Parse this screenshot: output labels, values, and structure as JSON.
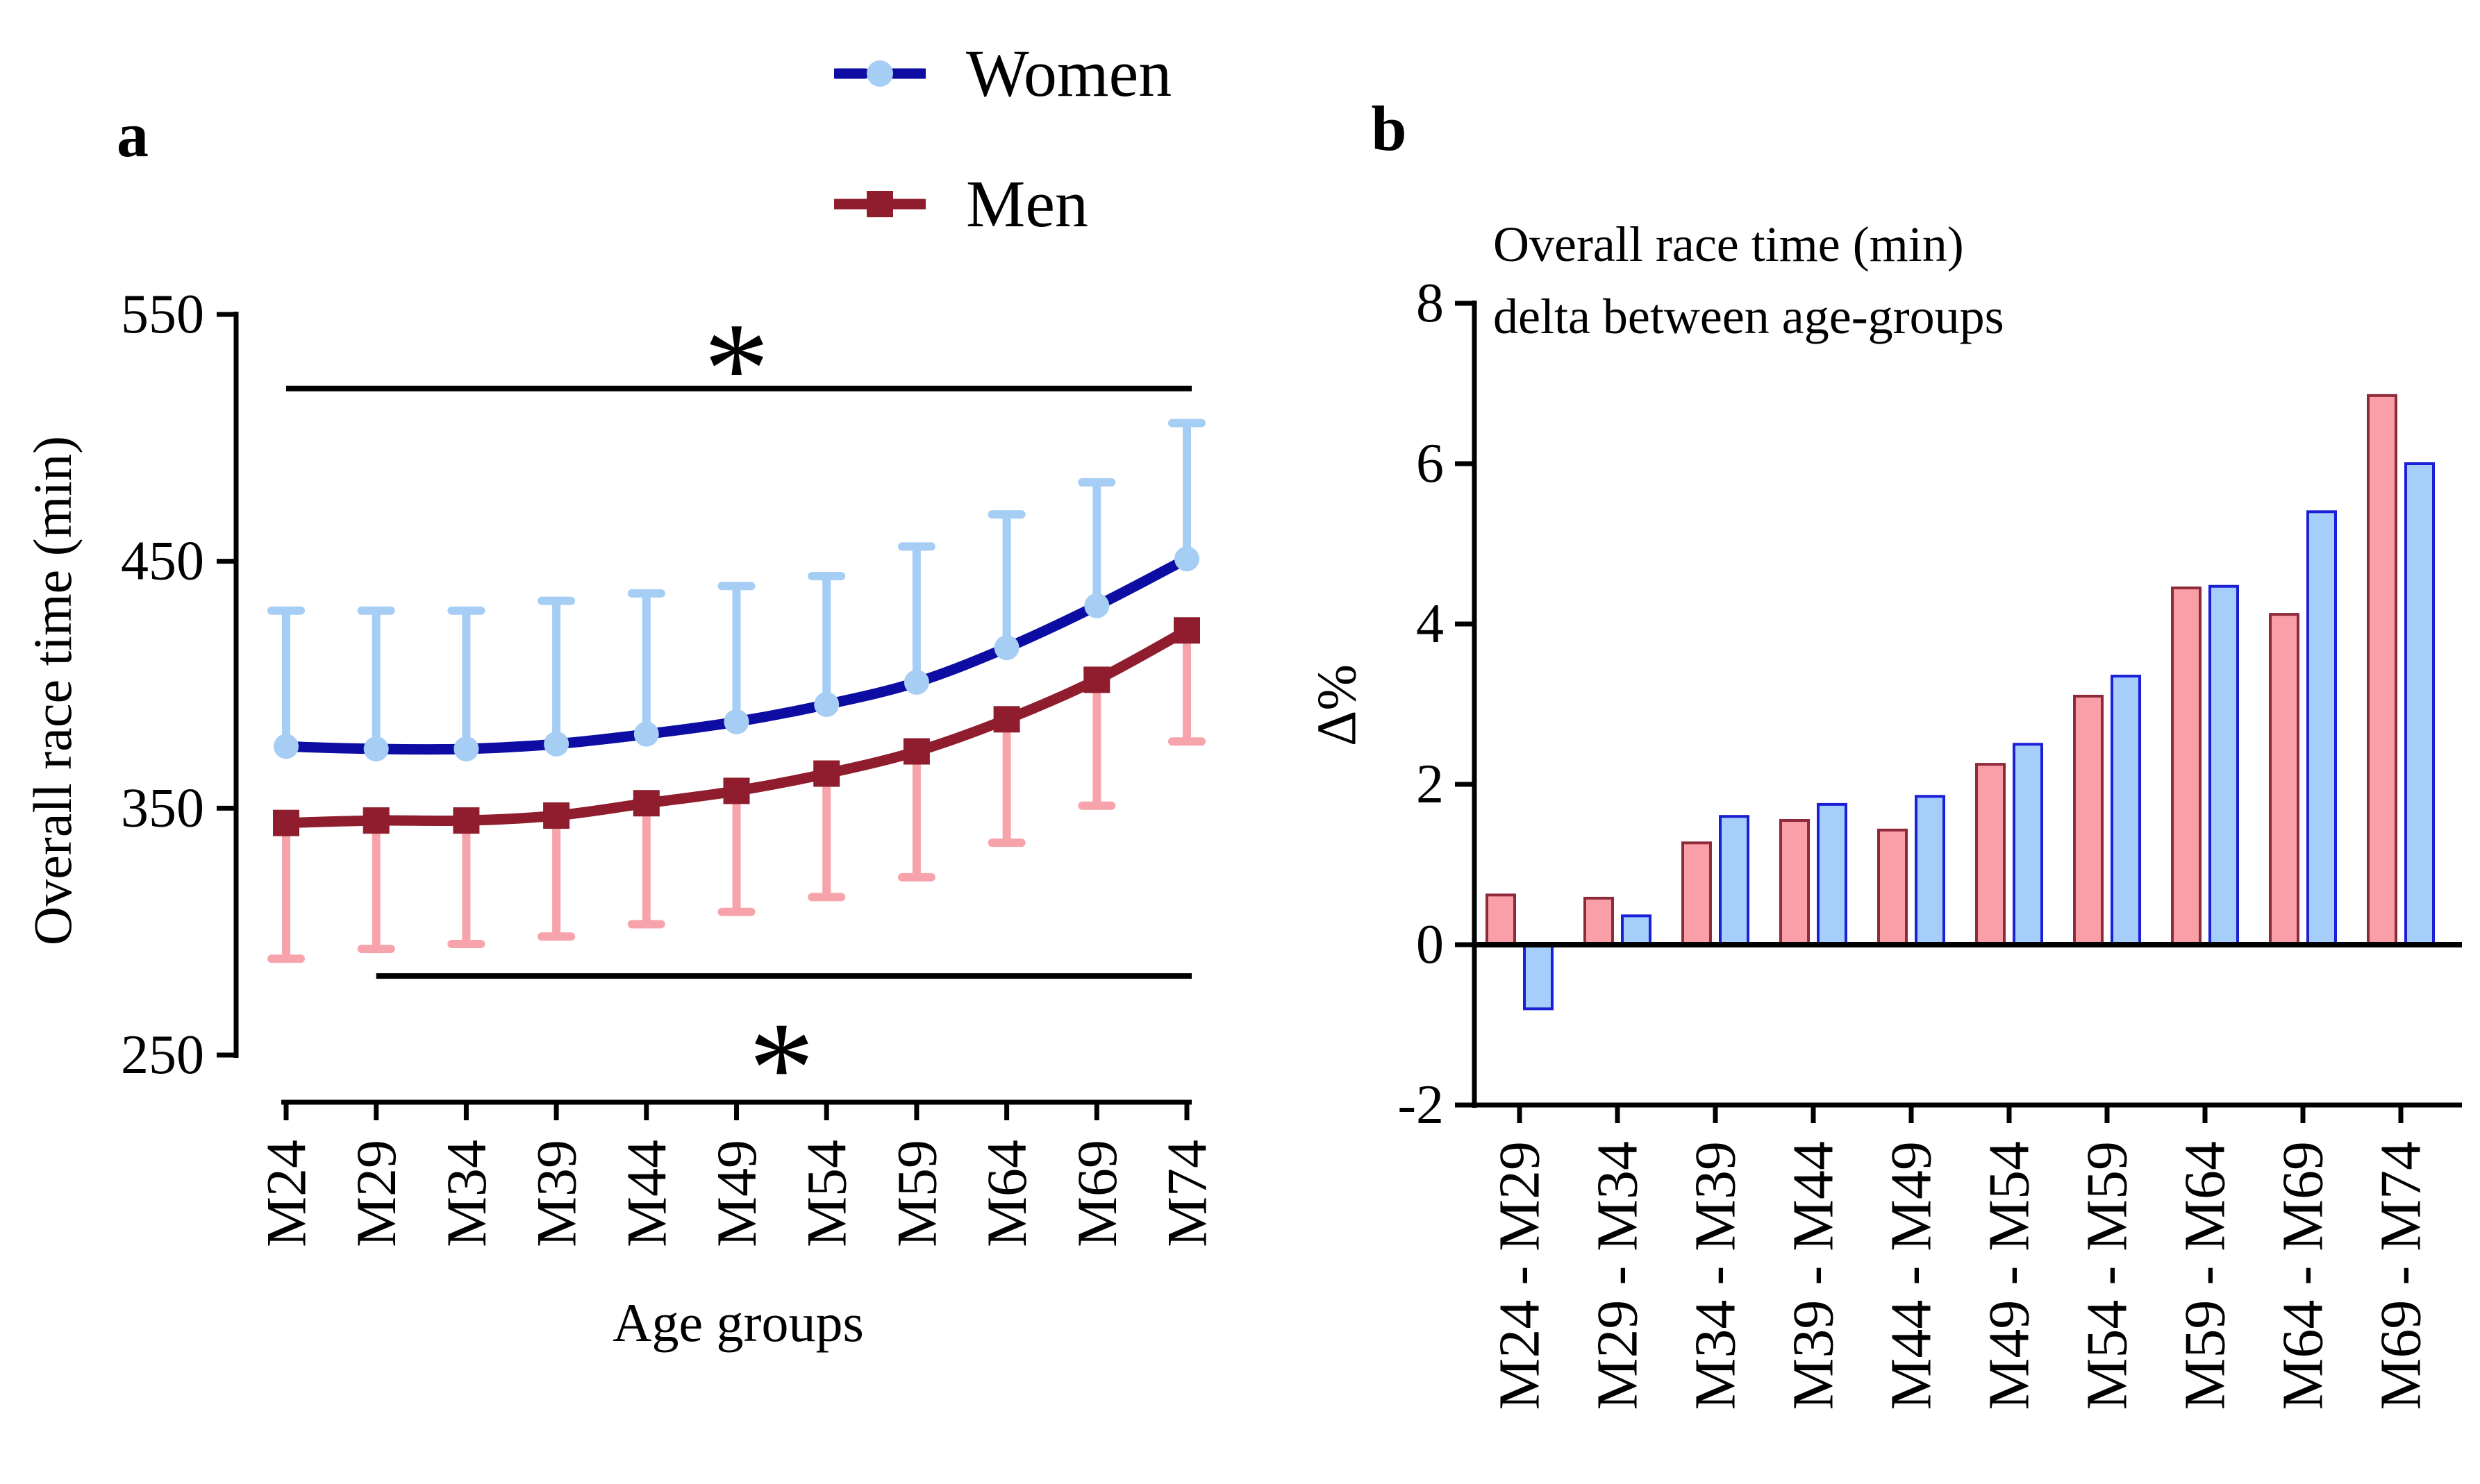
{
  "chart_data": [
    {
      "id": "panel_a",
      "type": "line",
      "panel_label": "a",
      "xlabel": "Age groups",
      "ylabel": "Overall race time (min)",
      "ylim": [
        250,
        550
      ],
      "yticks": [
        550,
        450,
        350,
        250
      ],
      "grid": "off",
      "legend_position": "top-center",
      "categories": [
        "M24",
        "M29",
        "M34",
        "M39",
        "M44",
        "M49",
        "M54",
        "M59",
        "M64",
        "M69",
        "M74"
      ],
      "series": [
        {
          "name": "Women",
          "marker": "circle",
          "line_color": "#0d0da3",
          "fill_color": "#a6cdf4",
          "values": [
            375,
            374,
            374,
            376,
            380,
            385,
            392,
            401,
            415,
            432,
            451
          ],
          "error_upper": [
            430,
            430,
            430,
            434,
            437,
            440,
            444,
            456,
            469,
            482,
            506
          ]
        },
        {
          "name": "Men",
          "marker": "square",
          "line_color": "#8f1d2e",
          "fill_color": "#f7a3ab",
          "values": [
            344,
            345,
            345,
            347,
            352,
            357,
            364,
            373,
            386,
            402,
            422
          ],
          "error_lower": [
            289,
            293,
            295,
            298,
            303,
            308,
            314,
            322,
            336,
            351,
            377
          ]
        }
      ],
      "annotations": [
        {
          "symbol": "*",
          "from": "M24",
          "to": "M74",
          "y": 520,
          "placement": "above"
        },
        {
          "symbol": "*",
          "from": "M29",
          "to": "M74",
          "y": 282,
          "placement": "below"
        }
      ]
    },
    {
      "id": "panel_b",
      "type": "bar",
      "panel_label": "b",
      "title_lines": [
        "Overall race time (min)",
        "delta between age-groups"
      ],
      "ylabel": "Δ%",
      "ylim": [
        -2,
        8
      ],
      "yticks": [
        8,
        6,
        4,
        2,
        0,
        -2
      ],
      "grid": "off",
      "categories": [
        "M24 - M29",
        "M29 - M34",
        "M34 - M39",
        "M39 - M44",
        "M44 - M49",
        "M49 - M54",
        "M54 - M59",
        "M59 - M64",
        "M64 - M69",
        "M69 - M74"
      ],
      "series": [
        {
          "name": "Men",
          "fill": "#fa9fa7",
          "stroke": "#8e2a3a",
          "values": [
            0.62,
            0.58,
            1.27,
            1.55,
            1.43,
            2.25,
            3.1,
            4.45,
            4.12,
            6.85
          ]
        },
        {
          "name": "Women",
          "fill": "#a6cefa",
          "stroke": "#1b1fd6",
          "values": [
            -0.8,
            0.36,
            1.6,
            1.75,
            1.85,
            2.5,
            3.35,
            4.47,
            5.4,
            6.0
          ]
        }
      ]
    }
  ]
}
